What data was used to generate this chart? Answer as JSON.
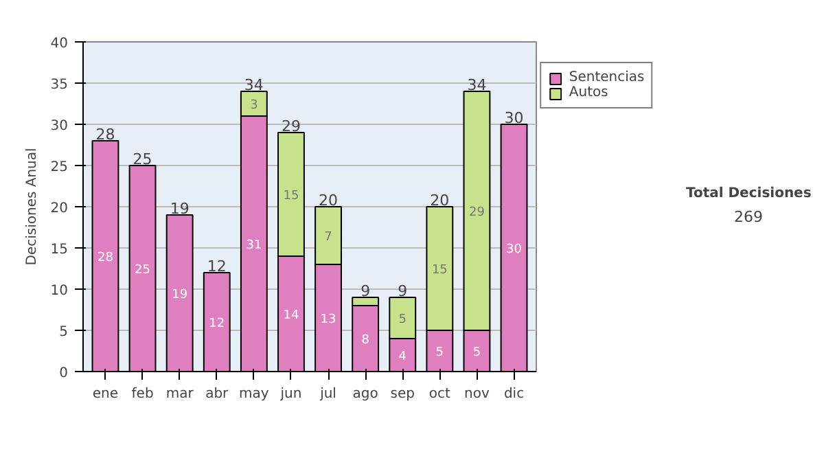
{
  "chart_data": {
    "type": "bar",
    "stacked": true,
    "ylabel": "Decisiones Anual",
    "categories": [
      "ene",
      "feb",
      "mar",
      "abr",
      "may",
      "jun",
      "jul",
      "ago",
      "sep",
      "oct",
      "nov",
      "dic"
    ],
    "series": [
      {
        "name": "Sentencias",
        "color": "#e07fc0",
        "values": [
          28,
          25,
          19,
          12,
          31,
          14,
          13,
          8,
          4,
          5,
          5,
          30
        ],
        "value_labels": [
          "28",
          "25",
          "19",
          "12",
          "31",
          "14",
          "13",
          "8",
          "4",
          "5",
          "5",
          "30"
        ]
      },
      {
        "name": "Autos",
        "color": "#c8e28c",
        "values": [
          0,
          0,
          0,
          0,
          3,
          15,
          7,
          1,
          5,
          15,
          29,
          0
        ],
        "value_labels": [
          null,
          null,
          null,
          null,
          "3",
          "15",
          "7",
          null,
          "5",
          "15",
          "29",
          null
        ]
      }
    ],
    "totals": [
      "28",
      "25",
      "19",
      "12",
      "34",
      "29",
      "20",
      "9",
      "9",
      "20",
      "34",
      "30"
    ],
    "ylim": [
      0,
      40
    ],
    "yticks": [
      0,
      5,
      10,
      15,
      20,
      25,
      30,
      35,
      40
    ],
    "grid": "y",
    "legend": "right",
    "annotations": [
      "Total Decisiones",
      "269"
    ]
  }
}
